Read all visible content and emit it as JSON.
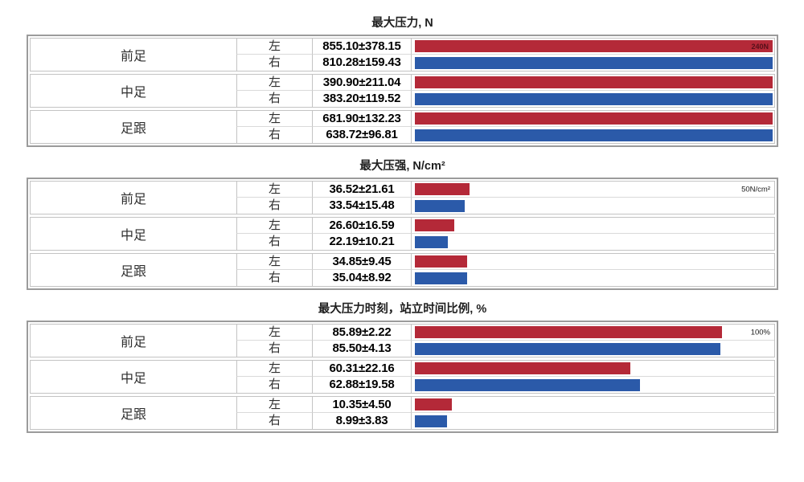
{
  "colors": {
    "left_bar": "#b42938",
    "right_bar": "#2b5aa9",
    "table_border": "#9b9b9b",
    "cell_border": "#c3c3c3",
    "row_divider": "#dadada",
    "marker_dark_red": "#55101a",
    "marker_black": "#1a1a1a"
  },
  "chart_data": [
    {
      "type": "bar",
      "orientation": "horizontal",
      "title": "最大压力, N",
      "unit": "N",
      "bar_axis_max": 240,
      "scale_marker": {
        "text": "240N",
        "style": "inside_bar"
      },
      "legend": {
        "左": "#b42938",
        "右": "#2b5aa9"
      },
      "groups": [
        {
          "region": "前足",
          "rows": [
            {
              "side": "左",
              "display": "855.10±378.15",
              "mean": 855.1,
              "sd": 378.15
            },
            {
              "side": "右",
              "display": "810.28±159.43",
              "mean": 810.28,
              "sd": 159.43
            }
          ]
        },
        {
          "region": "中足",
          "rows": [
            {
              "side": "左",
              "display": "390.90±211.04",
              "mean": 390.9,
              "sd": 211.04
            },
            {
              "side": "右",
              "display": "383.20±119.52",
              "mean": 383.2,
              "sd": 119.52
            }
          ]
        },
        {
          "region": "足跟",
          "rows": [
            {
              "side": "左",
              "display": "681.90±132.23",
              "mean": 681.9,
              "sd": 132.23
            },
            {
              "side": "右",
              "display": "638.72±96.81",
              "mean": 638.72,
              "sd": 96.81
            }
          ]
        }
      ]
    },
    {
      "type": "bar",
      "orientation": "horizontal",
      "title": "最大压强, N/cm²",
      "unit": "N/cm²",
      "bar_axis_max": 240,
      "scale_marker": {
        "text": "50N/cm²",
        "style": "right_edge"
      },
      "legend": {
        "左": "#b42938",
        "右": "#2b5aa9"
      },
      "groups": [
        {
          "region": "前足",
          "rows": [
            {
              "side": "左",
              "display": "36.52±21.61",
              "mean": 36.52,
              "sd": 21.61
            },
            {
              "side": "右",
              "display": "33.54±15.48",
              "mean": 33.54,
              "sd": 15.48
            }
          ]
        },
        {
          "region": "中足",
          "rows": [
            {
              "side": "左",
              "display": "26.60±16.59",
              "mean": 26.6,
              "sd": 16.59
            },
            {
              "side": "右",
              "display": "22.19±10.21",
              "mean": 22.19,
              "sd": 10.21
            }
          ]
        },
        {
          "region": "足跟",
          "rows": [
            {
              "side": "左",
              "display": "34.85±9.45",
              "mean": 34.85,
              "sd": 9.45
            },
            {
              "side": "右",
              "display": "35.04±8.92",
              "mean": 35.04,
              "sd": 8.92
            }
          ]
        }
      ]
    },
    {
      "type": "bar",
      "orientation": "horizontal",
      "title": "最大压力时刻，站立时间比例, %",
      "unit": "%",
      "bar_axis_max": 100,
      "scale_marker": {
        "text": "100%",
        "style": "right_edge"
      },
      "legend": {
        "左": "#b42938",
        "右": "#2b5aa9"
      },
      "groups": [
        {
          "region": "前足",
          "rows": [
            {
              "side": "左",
              "display": "85.89±2.22",
              "mean": 85.89,
              "sd": 2.22
            },
            {
              "side": "右",
              "display": "85.50±4.13",
              "mean": 85.5,
              "sd": 4.13
            }
          ]
        },
        {
          "region": "中足",
          "rows": [
            {
              "side": "左",
              "display": "60.31±22.16",
              "mean": 60.31,
              "sd": 22.16
            },
            {
              "side": "右",
              "display": "62.88±19.58",
              "mean": 62.88,
              "sd": 19.58
            }
          ]
        },
        {
          "region": "足跟",
          "rows": [
            {
              "side": "左",
              "display": "10.35±4.50",
              "mean": 10.35,
              "sd": 4.5
            },
            {
              "side": "右",
              "display": "8.99±3.83",
              "mean": 8.99,
              "sd": 3.83
            }
          ]
        }
      ]
    }
  ]
}
